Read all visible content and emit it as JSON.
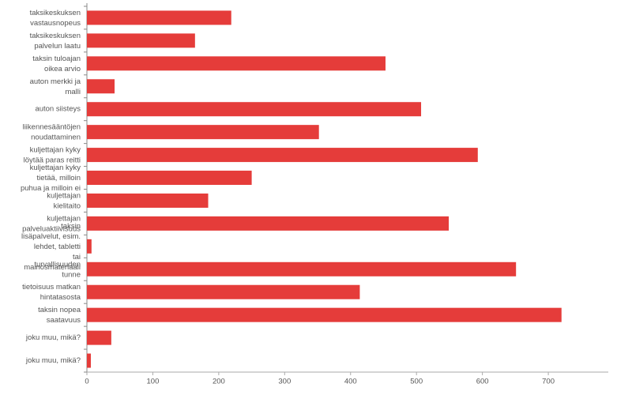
{
  "chart_data": {
    "type": "bar",
    "orientation": "horizontal",
    "categories": [
      "taksikeskuksen vastausnopeus",
      "taksikeskuksen palvelun laatu",
      "taksin tuloajan oikea arvio",
      "auton merkki ja malli",
      "auton siisteys",
      "liikennesääntöjen noudattaminen",
      "kuljettajan kyky löytää paras reitti",
      "kuljettajan kyky tietää, milloin puhua ja milloin ei",
      "kuljettajan kielitaito",
      "kuljettajan palveluaktiivisuus",
      "taksin lisäpalvelut, esim. lehdet, tabletti tai mainosmateriaali",
      "turvallisuuden tunne",
      "tietoisuus matkan hintatasosta",
      "taksin nopea saatavuus",
      "joku muu, mikä?",
      "joku muu, mikä?"
    ],
    "values": [
      219,
      164,
      453,
      42,
      507,
      352,
      593,
      250,
      184,
      549,
      7,
      651,
      414,
      720,
      37,
      6
    ],
    "color": "#e53c3a",
    "xlim": [
      0,
      791
    ],
    "xticks": [
      0,
      100,
      200,
      300,
      400,
      500,
      600,
      700
    ]
  }
}
